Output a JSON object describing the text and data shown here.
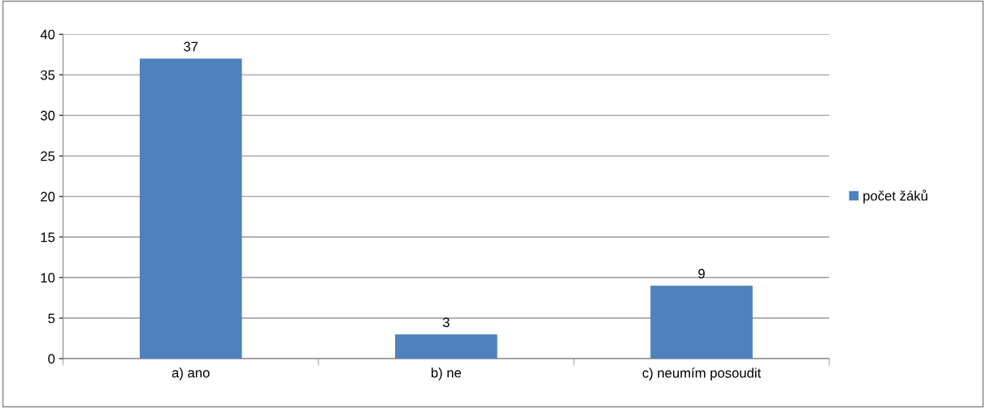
{
  "chart_data": {
    "type": "bar",
    "categories": [
      "a) ano",
      "b) ne",
      "c) neumím posoudit"
    ],
    "series": [
      {
        "name": "počet žáků",
        "color": "#4f81bd",
        "values": [
          37,
          3,
          9
        ]
      }
    ],
    "ylim": [
      0,
      40
    ],
    "yticks": [
      0,
      5,
      10,
      15,
      20,
      25,
      30,
      35,
      40
    ],
    "grid": "y",
    "legend": "right",
    "data_labels": true
  }
}
